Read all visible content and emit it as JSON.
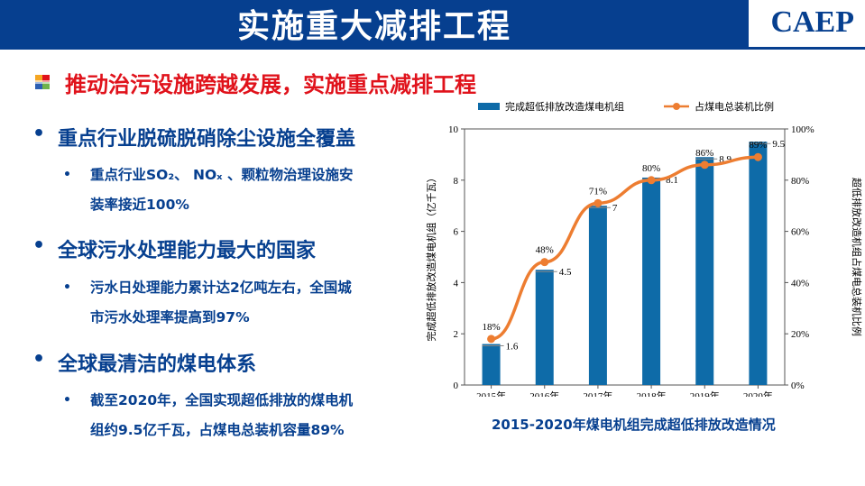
{
  "header": {
    "title": "实施重大减排工程",
    "logo": "CAEP",
    "brand_color": "#063f8f"
  },
  "subtitle": "推动治污设施跨越发展，实施重点减排工程",
  "bullets": [
    {
      "level": 1,
      "text": "重点行业脱硫脱硝除尘设施全覆盖"
    },
    {
      "level": 2,
      "lines": [
        "重点行业SO₂、 NOₓ 、颗粒物治理设施安",
        "装率接近100%"
      ]
    },
    {
      "level": 1,
      "text": "全球污水处理能力最大的国家"
    },
    {
      "level": 2,
      "lines": [
        "污水日处理能力累计达2亿吨左右，全国城",
        "市污水处理率提高到97%"
      ]
    },
    {
      "level": 1,
      "text": "全球最清洁的煤电体系"
    },
    {
      "level": 2,
      "lines": [
        "截至2020年，全国实现超低排放的煤电机",
        "组约9.5亿千瓦，占煤电总装机容量89%"
      ]
    }
  ],
  "bullet_symbols": {
    "l1": "•",
    "l2": "•"
  },
  "chart_data": {
    "type": "bar",
    "title": "2015-2020年煤电机组完成超低排放改造情况",
    "categories": [
      "2015年",
      "2016年",
      "2017年",
      "2018年",
      "2019年",
      "2020年"
    ],
    "series": [
      {
        "name": "完成超低排放改造煤电机组",
        "type": "bar",
        "axis": "left",
        "values": [
          1.6,
          4.5,
          7,
          8.1,
          8.9,
          9.5
        ],
        "labels": [
          "1.6",
          "4.5",
          "7",
          "8.1",
          "8.9",
          "9.5"
        ],
        "color": "#0e6ba8"
      },
      {
        "name": "占煤电总装机比例",
        "type": "line",
        "axis": "right",
        "values": [
          18,
          48,
          71,
          80,
          86,
          89
        ],
        "labels": [
          "18%",
          "48%",
          "71%",
          "80%",
          "86%",
          "89%"
        ],
        "color": "#ed7d31"
      }
    ],
    "ylabel": "完成超低排放改造煤电机组（亿千瓦）",
    "y2label": "超低排放改造机组占煤电总装机比例",
    "ylim": [
      0,
      10
    ],
    "yticks": [
      "0",
      "2",
      "4",
      "6",
      "8",
      "10"
    ],
    "y2lim": [
      0,
      100
    ],
    "y2ticks": [
      "0%",
      "20%",
      "40%",
      "60%",
      "80%",
      "100%"
    ],
    "grid": false,
    "legend": "top"
  }
}
